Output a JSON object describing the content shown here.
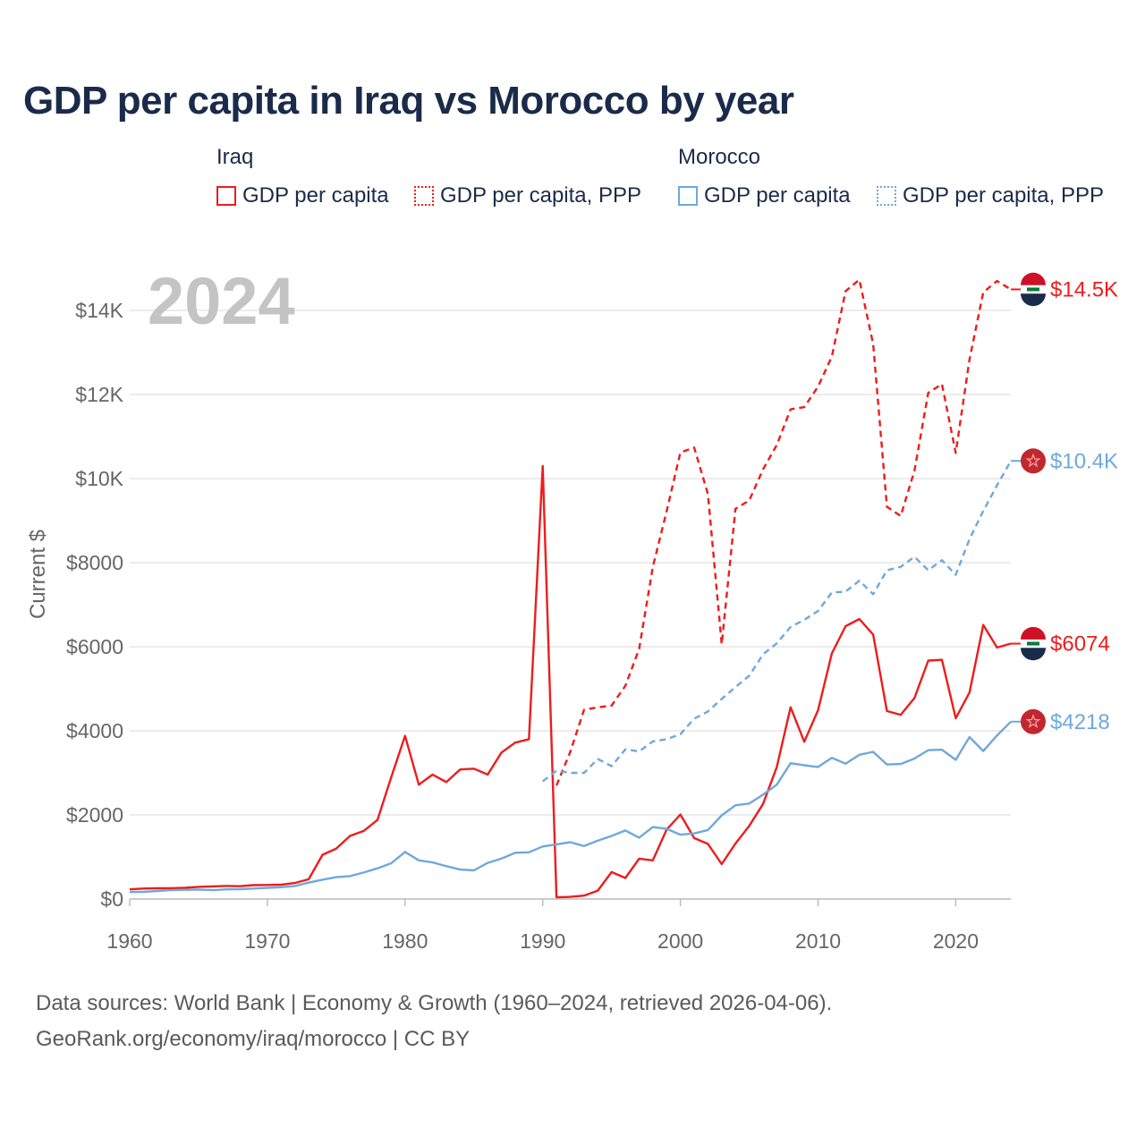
{
  "title": "GDP per capita in Iraq vs Morocco by year",
  "legend": {
    "iraq_label": "Iraq",
    "morocco_label": "Morocco",
    "iraq_gdp": "GDP per capita",
    "iraq_ppp": "GDP per capita, PPP",
    "morocco_gdp": "GDP per capita",
    "morocco_ppp": "GDP per capita, PPP"
  },
  "year_watermark": "2024",
  "colors": {
    "iraq": "#ee1c1c",
    "morocco": "#6fa8dc",
    "grid": "#e6e6e6",
    "axis_text": "#666666"
  },
  "source": {
    "line1": "Data sources: World Bank | Economy & Growth (1960–2024, retrieved 2026-04-06).",
    "line2": "GeoRank.org/economy/iraq/morocco | CC BY"
  },
  "chart_data": {
    "type": "line",
    "title": "GDP per capita in Iraq vs Morocco by year",
    "xlabel": "",
    "ylabel": "Current $",
    "xlim": [
      1960,
      2024
    ],
    "ylim": [
      0,
      15000
    ],
    "x_ticks": [
      1960,
      1970,
      1980,
      1990,
      2000,
      2010,
      2020
    ],
    "y_ticks": [
      0,
      2000,
      4000,
      6000,
      8000,
      10000,
      12000,
      14000
    ],
    "y_tick_labels": [
      "$0",
      "$2000",
      "$4000",
      "$6000",
      "$8000",
      "$10K",
      "$12K",
      "$14K"
    ],
    "series": [
      {
        "name": "Iraq GDP per capita",
        "country": "Iraq",
        "style": "solid",
        "color": "#ee1c1c",
        "end_label": "$6074",
        "x": [
          1960,
          1961,
          1962,
          1963,
          1964,
          1965,
          1966,
          1967,
          1968,
          1969,
          1970,
          1971,
          1972,
          1973,
          1974,
          1975,
          1976,
          1977,
          1978,
          1979,
          1980,
          1981,
          1982,
          1983,
          1984,
          1985,
          1986,
          1987,
          1988,
          1989,
          1990,
          1991,
          1992,
          1993,
          1994,
          1995,
          1996,
          1997,
          1998,
          1999,
          2000,
          2001,
          2002,
          2003,
          2004,
          2005,
          2006,
          2007,
          2008,
          2009,
          2010,
          2011,
          2012,
          2013,
          2014,
          2015,
          2016,
          2017,
          2018,
          2019,
          2020,
          2021,
          2022,
          2023,
          2024
        ],
        "values": [
          230,
          250,
          255,
          255,
          265,
          290,
          300,
          310,
          305,
          330,
          335,
          340,
          380,
          470,
          1050,
          1200,
          1500,
          1620,
          1880,
          2900,
          3880,
          2720,
          2960,
          2780,
          3080,
          3100,
          2960,
          3480,
          3720,
          3800,
          10300,
          40,
          50,
          80,
          200,
          640,
          500,
          960,
          920,
          1650,
          2010,
          1450,
          1310,
          830,
          1320,
          1740,
          2260,
          3140,
          4560,
          3740,
          4490,
          5840,
          6490,
          6660,
          6290,
          4470,
          4380,
          4780,
          5670,
          5690,
          4300,
          4910,
          6520,
          5980,
          6074
        ]
      },
      {
        "name": "Iraq GDP per capita, PPP",
        "country": "Iraq",
        "style": "dashed",
        "color": "#ee1c1c",
        "end_label": "$14.5K",
        "x": [
          1991,
          1992,
          1993,
          1994,
          1995,
          1996,
          1997,
          1998,
          1999,
          2000,
          2001,
          2002,
          2003,
          2004,
          2005,
          2006,
          2007,
          2008,
          2009,
          2010,
          2011,
          2012,
          2013,
          2014,
          2015,
          2016,
          2017,
          2018,
          2019,
          2020,
          2021,
          2022,
          2023,
          2024
        ],
        "values": [
          2700,
          3500,
          4500,
          4560,
          4600,
          5070,
          5950,
          7900,
          9220,
          10620,
          10740,
          9630,
          6060,
          9280,
          9480,
          10220,
          10800,
          11650,
          11700,
          12190,
          12900,
          14460,
          14730,
          13200,
          9330,
          9110,
          10190,
          12040,
          12250,
          10610,
          12830,
          14430,
          14700,
          14500
        ]
      },
      {
        "name": "Morocco GDP per capita",
        "country": "Morocco",
        "style": "solid",
        "color": "#6fa8dc",
        "end_label": "$4218",
        "x": [
          1960,
          1961,
          1962,
          1963,
          1964,
          1965,
          1966,
          1967,
          1968,
          1969,
          1970,
          1971,
          1972,
          1973,
          1974,
          1975,
          1976,
          1977,
          1978,
          1979,
          1980,
          1981,
          1982,
          1983,
          1984,
          1985,
          1986,
          1987,
          1988,
          1989,
          1990,
          1991,
          1992,
          1993,
          1994,
          1995,
          1996,
          1997,
          1998,
          1999,
          2000,
          2001,
          2002,
          2003,
          2004,
          2005,
          2006,
          2007,
          2008,
          2009,
          2010,
          2011,
          2012,
          2013,
          2014,
          2015,
          2016,
          2017,
          2018,
          2019,
          2020,
          2021,
          2022,
          2023,
          2024
        ],
        "values": [
          165,
          170,
          190,
          210,
          220,
          225,
          210,
          230,
          235,
          250,
          265,
          280,
          310,
          390,
          460,
          520,
          545,
          630,
          730,
          850,
          1120,
          920,
          870,
          780,
          700,
          680,
          860,
          960,
          1100,
          1110,
          1250,
          1300,
          1350,
          1260,
          1390,
          1500,
          1630,
          1460,
          1710,
          1670,
          1530,
          1560,
          1640,
          1990,
          2230,
          2270,
          2480,
          2720,
          3230,
          3180,
          3140,
          3360,
          3220,
          3430,
          3500,
          3200,
          3210,
          3340,
          3540,
          3550,
          3310,
          3850,
          3520,
          3890,
          4218
        ]
      },
      {
        "name": "Morocco GDP per capita, PPP",
        "country": "Morocco",
        "style": "dashed",
        "color": "#6fa8dc",
        "end_label": "$10.4K",
        "x": [
          1990,
          1991,
          1992,
          1993,
          1994,
          1995,
          1996,
          1997,
          1998,
          1999,
          2000,
          2001,
          2002,
          2003,
          2004,
          2005,
          2006,
          2007,
          2008,
          2009,
          2010,
          2011,
          2012,
          2013,
          2014,
          2015,
          2016,
          2017,
          2018,
          2019,
          2020,
          2021,
          2022,
          2023,
          2024
        ],
        "values": [
          2800,
          3050,
          3000,
          3000,
          3330,
          3160,
          3560,
          3510,
          3750,
          3800,
          3920,
          4290,
          4460,
          4760,
          5040,
          5310,
          5820,
          6080,
          6470,
          6640,
          6850,
          7290,
          7310,
          7570,
          7250,
          7820,
          7900,
          8140,
          7820,
          8060,
          7710,
          8560,
          9230,
          9840,
          10420
        ]
      }
    ]
  }
}
